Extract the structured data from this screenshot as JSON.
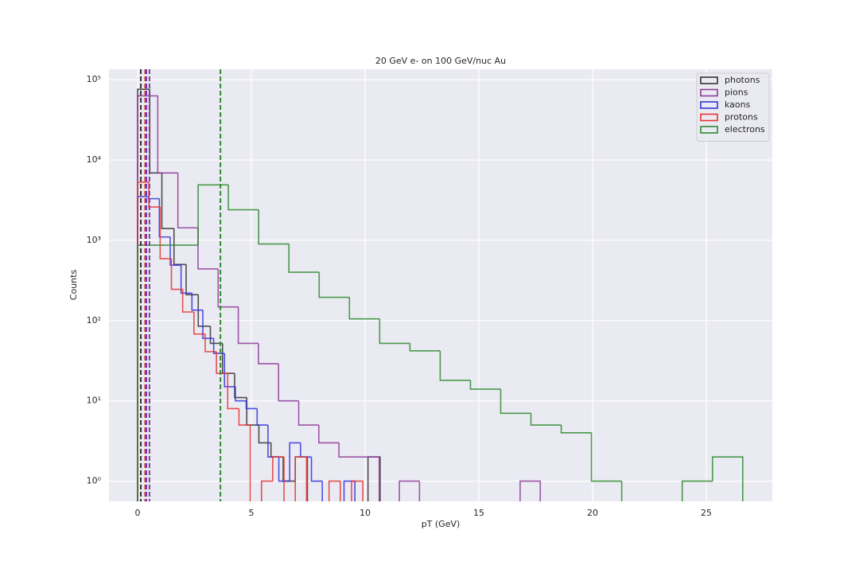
{
  "chart_data": {
    "type": "histogram",
    "title": "20 GeV e- on 100 GeV/nuc Au",
    "x_label": "pT (GeV)",
    "y_label": "Counts",
    "xlim": [
      -1.26,
      27.9
    ],
    "ylim": [
      0.56,
      135000
    ],
    "log_y": true,
    "grid": true,
    "legend_position": "upper right",
    "xticks": [
      0,
      5,
      10,
      15,
      20,
      25
    ],
    "yticks": [
      {
        "value": 1,
        "label": "10⁰"
      },
      {
        "value": 10,
        "label": "10¹"
      },
      {
        "value": 100,
        "label": "10²"
      },
      {
        "value": 1000,
        "label": "10³"
      },
      {
        "value": 10000,
        "label": "10⁴"
      },
      {
        "value": 100000,
        "label": "10⁵"
      }
    ],
    "series": [
      {
        "name": "photons",
        "color": "#333333",
        "mean": 0.14,
        "bins": [
          0,
          0.533,
          1.066,
          1.599,
          2.132,
          2.665,
          3.198,
          3.731,
          4.264,
          4.797,
          5.33,
          5.863,
          6.396,
          6.929,
          7.462,
          7.995,
          8.528,
          9.061,
          9.594,
          10.127,
          10.66
        ],
        "values": [
          76000,
          6900,
          1400,
          500,
          210,
          85,
          52,
          22,
          11,
          5,
          3,
          2,
          1,
          2,
          0,
          0,
          0,
          0,
          0,
          2
        ]
      },
      {
        "name": "pions",
        "color": "#8e3b96",
        "mean": 0.52,
        "bins": [
          0,
          0.885,
          1.77,
          2.655,
          3.54,
          4.425,
          5.31,
          6.195,
          7.08,
          7.965,
          8.85,
          9.735,
          10.62,
          11.505,
          12.39,
          13.275,
          14.16,
          15.045,
          15.93,
          16.815,
          17.7
        ],
        "values": [
          63000,
          6900,
          1430,
          440,
          148,
          52,
          29,
          10,
          5,
          3,
          2,
          2,
          0,
          1,
          0,
          0,
          0,
          0,
          0,
          1
        ]
      },
      {
        "name": "kaons",
        "color": "#3333dd",
        "mean": 0.38,
        "bins": [
          0,
          0.4775,
          0.955,
          1.4325,
          1.91,
          2.3875,
          2.865,
          3.3425,
          3.82,
          4.2975,
          4.775,
          5.2525,
          5.73,
          6.2075,
          6.685,
          7.1625,
          7.64,
          8.1175,
          8.595,
          9.0725,
          9.55
        ],
        "values": [
          3500,
          3300,
          1100,
          490,
          220,
          135,
          60,
          39,
          15,
          10,
          8,
          5,
          2,
          1,
          3,
          2,
          1,
          0,
          0,
          1
        ]
      },
      {
        "name": "protons",
        "color": "#e83333",
        "mean": 0.33,
        "bins": [
          0,
          0.495,
          0.99,
          1.485,
          1.98,
          2.475,
          2.97,
          3.465,
          3.96,
          4.455,
          4.95,
          5.445,
          5.94,
          6.435,
          6.93,
          7.425,
          7.92,
          8.415,
          8.91,
          9.405,
          9.9
        ],
        "values": [
          5300,
          2600,
          590,
          245,
          128,
          68,
          41,
          22,
          8,
          5,
          0,
          1,
          2,
          0,
          2,
          0,
          0,
          1,
          0,
          1
        ]
      },
      {
        "name": "electrons",
        "color": "#2e8b2e",
        "mean": 3.64,
        "bins": [
          0,
          1.33,
          2.66,
          3.99,
          5.32,
          6.65,
          7.98,
          9.31,
          10.64,
          11.97,
          13.3,
          14.63,
          15.96,
          17.29,
          18.62,
          19.95,
          21.28,
          22.61,
          23.94,
          25.27,
          26.6
        ],
        "values": [
          870,
          870,
          4900,
          2400,
          900,
          400,
          195,
          105,
          52,
          42,
          18,
          14,
          7,
          5,
          4,
          1,
          0,
          0,
          1,
          2
        ]
      }
    ]
  }
}
